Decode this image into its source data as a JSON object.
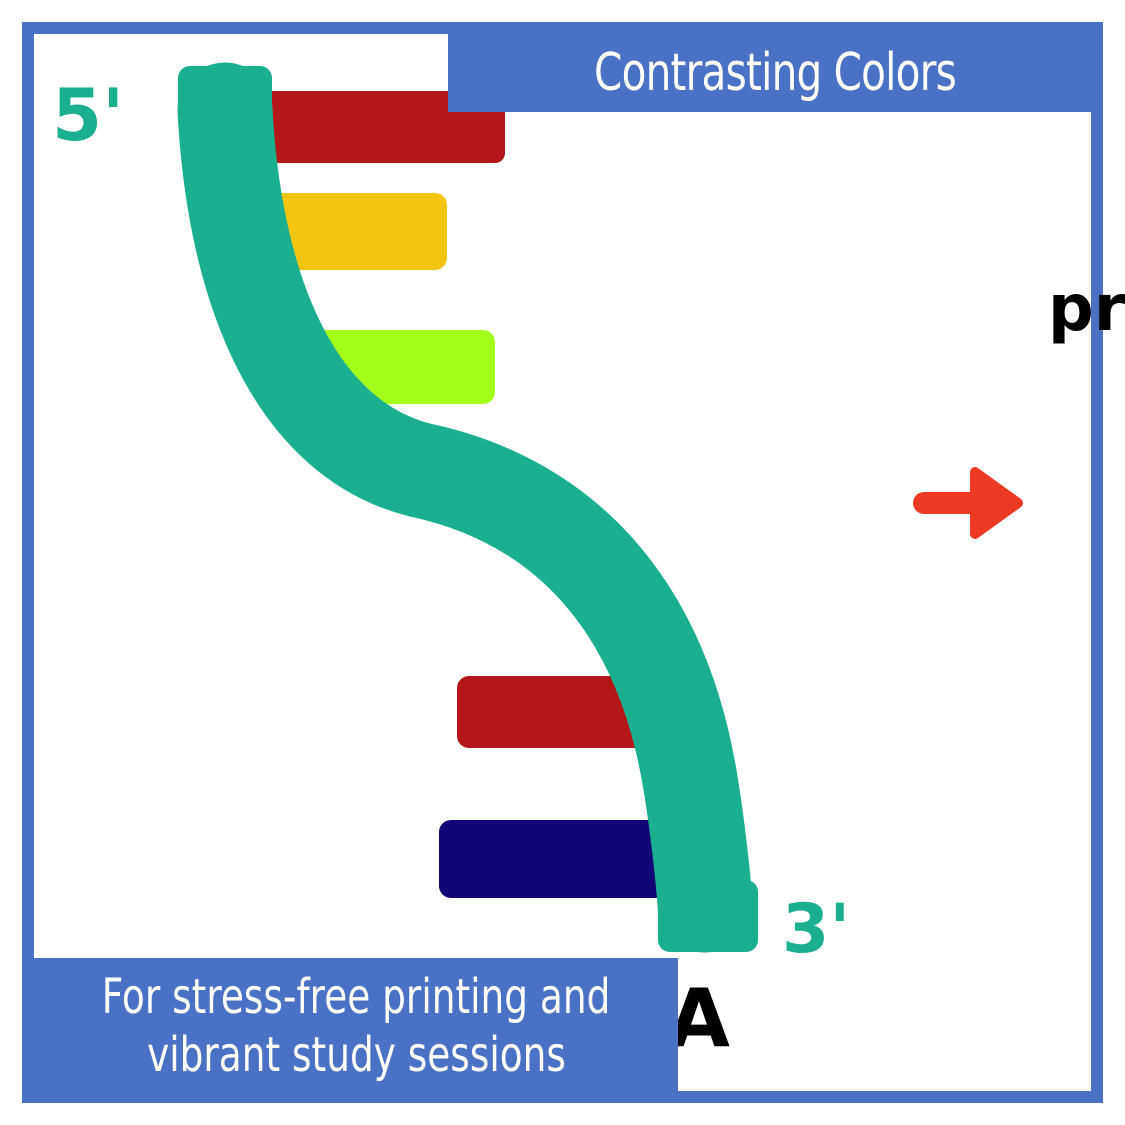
{
  "banner": {
    "title": "Contrasting Colors",
    "caption_line1": "For stress-free printing and",
    "caption_line2": "vibrant study sessions"
  },
  "diagram": {
    "label_5prime": "5'",
    "label_3prime": "3'",
    "label_partial_right": "pr",
    "label_partial_bottom": "A"
  },
  "colors": {
    "frame": "#4a72c4",
    "backbone": "#1aaf8f",
    "base_red": "#b31717",
    "base_yellow": "#f2c511",
    "base_green": "#a3ff1a",
    "base_navy": "#110578",
    "arrow": "#ee3a24",
    "ink": "#000000"
  }
}
